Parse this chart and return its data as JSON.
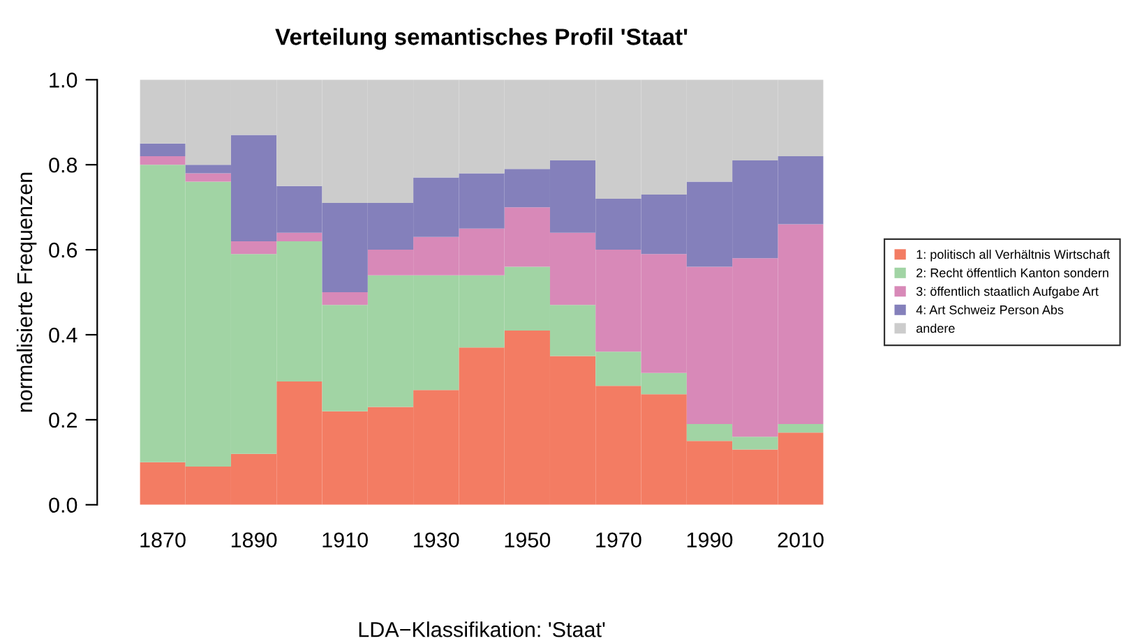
{
  "chart_data": {
    "type": "bar",
    "stacked": true,
    "title": "Verteilung semantisches Profil 'Staat'",
    "xlabel": "LDA−Klassifikation: 'Staat'",
    "ylabel": "normalisierte Frequenzen",
    "categories": [
      "1870",
      null,
      "1890",
      null,
      "1910",
      null,
      "1930",
      null,
      "1950",
      null,
      "1970",
      null,
      "1990",
      null,
      "2010"
    ],
    "series": [
      {
        "name": "1: politisch all Verhältnis Wirtschaft",
        "color": "#f37c63",
        "values": [
          0.1,
          0.09,
          0.12,
          0.29,
          0.22,
          0.23,
          0.27,
          0.37,
          0.41,
          0.35,
          0.28,
          0.26,
          0.15,
          0.13,
          0.17
        ]
      },
      {
        "name": "2: Recht öffentlich Kanton sondern",
        "color": "#a1d4a4",
        "values": [
          0.7,
          0.67,
          0.47,
          0.33,
          0.25,
          0.31,
          0.27,
          0.17,
          0.15,
          0.12,
          0.08,
          0.05,
          0.04,
          0.03,
          0.02
        ]
      },
      {
        "name": "3: öffentlich staatlich Aufgabe Art",
        "color": "#d889b8",
        "values": [
          0.02,
          0.02,
          0.03,
          0.02,
          0.03,
          0.06,
          0.09,
          0.11,
          0.14,
          0.17,
          0.24,
          0.28,
          0.37,
          0.42,
          0.47
        ]
      },
      {
        "name": "4: Art Schweiz Person Abs",
        "color": "#8480bb",
        "values": [
          0.03,
          0.02,
          0.25,
          0.11,
          0.21,
          0.11,
          0.14,
          0.13,
          0.09,
          0.17,
          0.12,
          0.14,
          0.2,
          0.23,
          0.16
        ]
      },
      {
        "name": "andere",
        "color": "#cccccc",
        "values": [
          0.15,
          0.2,
          0.13,
          0.25,
          0.29,
          0.29,
          0.23,
          0.22,
          0.21,
          0.19,
          0.28,
          0.27,
          0.24,
          0.19,
          0.18
        ]
      }
    ],
    "ylim": [
      0,
      1
    ],
    "yticks": [
      {
        "value": 0,
        "label": "0.0"
      },
      {
        "value": 0.2,
        "label": "0.2"
      },
      {
        "value": 0.4,
        "label": "0.4"
      },
      {
        "value": 0.6,
        "label": "0.6"
      },
      {
        "value": 0.8,
        "label": "0.8"
      },
      {
        "value": 1,
        "label": "1.0"
      }
    ],
    "grid": false,
    "legend": "right"
  }
}
